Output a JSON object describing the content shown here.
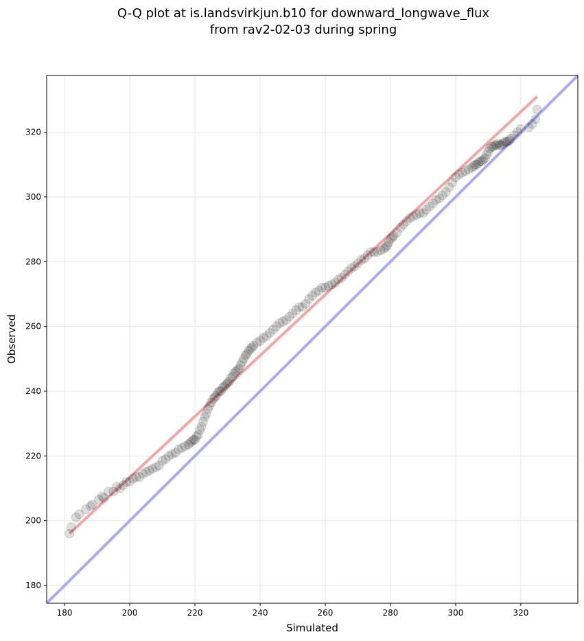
{
  "chart_data": {
    "type": "scatter",
    "title": [
      "Q-Q plot at is.landsvirkjun.b10 for downward_longwave_flux",
      "from rav2-02-03 during spring"
    ],
    "xlabel": "Simulated",
    "ylabel": "Observed",
    "xlim": [
      174.5,
      337.5
    ],
    "ylim": [
      174.5,
      337.5
    ],
    "xticks": [
      180,
      200,
      220,
      240,
      260,
      280,
      300,
      320
    ],
    "yticks": [
      180,
      200,
      220,
      240,
      260,
      280,
      300,
      320
    ],
    "grid": true,
    "colors": {
      "points": "#000000",
      "fit_line": "#f4a6a6",
      "identity_line": "#aaaaf5"
    },
    "fit_line": {
      "x": [
        181.5,
        325.0
      ],
      "y": [
        196.0,
        331.0
      ]
    },
    "identity_line": {
      "x": [
        174.5,
        337.5
      ],
      "y": [
        174.5,
        337.5
      ]
    },
    "points": {
      "x": [
        181.5,
        182.0,
        183.5,
        184.5,
        186.5,
        188.0,
        188.5,
        190.5,
        191.5,
        192.0,
        193.5,
        195.0,
        196.0,
        197.0,
        198.0,
        199.0,
        200.0,
        201.0,
        202.0,
        203.0,
        204.0,
        205.0,
        206.0,
        207.0,
        208.0,
        209.0,
        210.0,
        211.0,
        212.0,
        213.0,
        214.0,
        215.0,
        216.0,
        217.0,
        218.0,
        218.5,
        219.0,
        219.5,
        220.0,
        220.5,
        221.0,
        221.5,
        222.0,
        222.5,
        223.0,
        223.5,
        224.0,
        224.5,
        225.0,
        225.5,
        226.0,
        226.5,
        227.0,
        227.5,
        228.0,
        228.5,
        229.0,
        229.5,
        230.0,
        230.5,
        231.0,
        231.5,
        232.0,
        232.5,
        233.0,
        233.5,
        234.0,
        234.5,
        235.0,
        235.5,
        236.0,
        236.5,
        237.0,
        237.5,
        238.0,
        239.0,
        240.0,
        241.0,
        242.0,
        243.0,
        244.0,
        245.0,
        246.0,
        247.0,
        248.0,
        249.0,
        250.0,
        251.0,
        252.0,
        253.0,
        254.0,
        255.0,
        256.0,
        257.0,
        258.0,
        259.0,
        260.0,
        261.0,
        262.0,
        263.0,
        264.0,
        265.0,
        266.0,
        267.0,
        268.0,
        269.0,
        270.0,
        271.0,
        272.0,
        273.0,
        274.0,
        275.0,
        276.0,
        277.0,
        278.0,
        278.5,
        279.0,
        279.5,
        280.0,
        280.5,
        281.0,
        282.0,
        283.0,
        284.0,
        285.0,
        286.0,
        287.0,
        288.0,
        289.0,
        290.0,
        291.0,
        292.0,
        293.0,
        294.0,
        295.0,
        296.0,
        297.0,
        298.0,
        299.0,
        300.0,
        301.0,
        302.0,
        303.0,
        304.0,
        305.0,
        305.5,
        306.0,
        306.5,
        307.0,
        307.5,
        308.0,
        308.5,
        309.0,
        309.5,
        310.0,
        310.5,
        311.0,
        311.5,
        312.0,
        312.5,
        313.0,
        313.5,
        314.0,
        314.5,
        315.0,
        315.5,
        316.0,
        316.5,
        317.0,
        318.0,
        319.0,
        320.0,
        322.5,
        323.5,
        324.5,
        325.0
      ],
      "y": [
        196.0,
        198.0,
        201.0,
        202.0,
        203.5,
        204.5,
        205.0,
        206.5,
        207.5,
        207.0,
        209.0,
        209.0,
        210.5,
        210.0,
        211.0,
        212.0,
        212.0,
        213.0,
        213.5,
        213.5,
        214.5,
        215.0,
        215.5,
        216.0,
        216.5,
        217.0,
        218.5,
        219.0,
        220.0,
        220.5,
        221.0,
        222.0,
        222.5,
        223.0,
        223.5,
        224.0,
        224.5,
        225.0,
        225.0,
        226.0,
        226.5,
        228.0,
        229.0,
        230.5,
        232.0,
        233.0,
        234.5,
        235.5,
        236.5,
        237.5,
        238.0,
        238.5,
        239.5,
        240.0,
        240.0,
        241.0,
        241.5,
        242.0,
        242.5,
        243.0,
        244.0,
        244.5,
        245.5,
        246.0,
        246.5,
        247.0,
        248.0,
        249.0,
        250.0,
        251.0,
        251.5,
        252.5,
        253.0,
        253.5,
        254.0,
        255.0,
        255.5,
        256.5,
        257.0,
        258.0,
        259.0,
        260.0,
        261.0,
        261.5,
        262.0,
        263.0,
        264.0,
        265.0,
        266.0,
        266.0,
        267.0,
        268.5,
        269.5,
        270.5,
        271.0,
        272.0,
        272.0,
        272.5,
        273.0,
        273.5,
        274.5,
        275.0,
        276.0,
        277.0,
        278.0,
        278.5,
        279.5,
        280.5,
        281.0,
        282.0,
        283.0,
        283.0,
        283.0,
        283.5,
        284.0,
        284.5,
        285.0,
        286.0,
        287.0,
        287.5,
        288.0,
        289.0,
        290.5,
        291.5,
        292.5,
        293.5,
        294.0,
        294.5,
        295.0,
        295.0,
        296.0,
        297.0,
        298.0,
        299.0,
        299.5,
        300.5,
        301.5,
        303.0,
        304.5,
        306.0,
        307.0,
        307.5,
        308.0,
        308.5,
        309.0,
        309.5,
        310.0,
        310.0,
        310.5,
        311.0,
        311.0,
        311.5,
        312.0,
        313.0,
        314.0,
        315.0,
        315.5,
        315.5,
        316.0,
        316.0,
        316.5,
        316.0,
        316.0,
        316.5,
        317.0,
        317.0,
        317.0,
        317.5,
        318.0,
        319.0,
        320.0,
        321.0,
        321.5,
        322.5,
        324.0,
        327.0
      ]
    }
  }
}
